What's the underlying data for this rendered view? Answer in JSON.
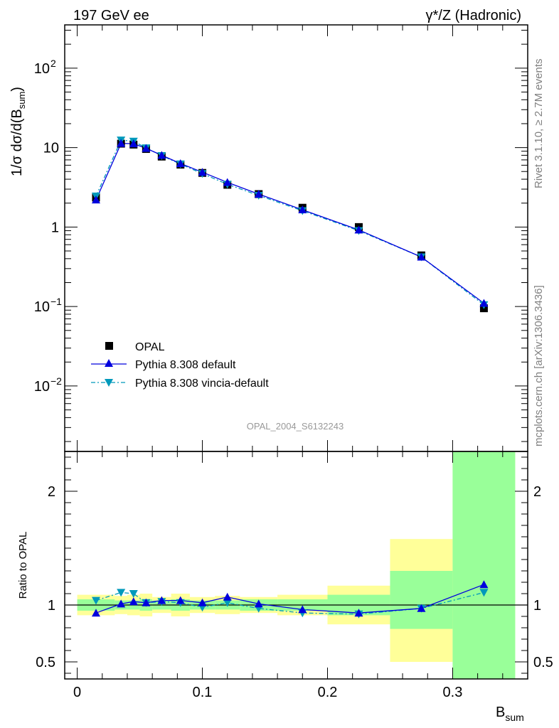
{
  "header": {
    "left": "197 GeV ee",
    "right_main": "γ*/Z (Hadronic)"
  },
  "side": {
    "rivet": "Rivet 3.1.10, ≥ 2.7M events",
    "mcplots": "mcplots.cern.ch [arXiv:1306.3436]"
  },
  "watermark": "OPAL_2004_S6132243",
  "axes": {
    "y_top_label": "1/σ dσ/d(B_sum)",
    "y_bottom_label": "Ratio to OPAL",
    "x_label": "B",
    "x_label_sub": "sum",
    "x_ticks": [
      "0",
      "0.1",
      "0.2",
      "0.3"
    ],
    "x_tick_values": [
      0,
      0.1,
      0.2,
      0.3
    ],
    "y_top_ticks": [
      {
        "value": 0.01,
        "base": "10",
        "exp": "−2"
      },
      {
        "value": 0.1,
        "base": "10",
        "exp": "−1"
      },
      {
        "value": 1,
        "base": "1",
        "exp": ""
      },
      {
        "value": 10,
        "base": "10",
        "exp": ""
      },
      {
        "value": 100,
        "base": "10",
        "exp": "2"
      }
    ],
    "y_bottom_ticks": [
      "0.5",
      "1",
      "2"
    ],
    "y_bottom_tick_values": [
      0.5,
      1,
      2
    ]
  },
  "legend": {
    "entries": [
      "OPAL",
      "Pythia 8.308 default",
      "Pythia 8.308 vincia-default"
    ]
  },
  "colors": {
    "data": "#000000",
    "default": "#0000dd",
    "vincia": "#0099bb",
    "band_inner": "#99ff99",
    "band_outer": "#ffff99"
  },
  "chart_data": [
    {
      "type": "scatter",
      "title": "197 GeV ee",
      "xlabel": "B_sum",
      "ylabel": "1/σ dσ/d(B_sum)",
      "yscale": "log",
      "xlim": [
        -0.01,
        0.36
      ],
      "ylim": [
        0.0015,
        350
      ],
      "bins": [
        [
          0.0,
          0.03
        ],
        [
          0.03,
          0.04
        ],
        [
          0.04,
          0.05
        ],
        [
          0.05,
          0.06
        ],
        [
          0.06,
          0.075
        ],
        [
          0.075,
          0.09
        ],
        [
          0.09,
          0.11
        ],
        [
          0.11,
          0.13
        ],
        [
          0.13,
          0.16
        ],
        [
          0.16,
          0.2
        ],
        [
          0.2,
          0.25
        ],
        [
          0.25,
          0.3
        ],
        [
          0.3,
          0.35
        ]
      ],
      "x": [
        0.015,
        0.035,
        0.045,
        0.055,
        0.0675,
        0.0825,
        0.1,
        0.12,
        0.145,
        0.18,
        0.225,
        0.275,
        0.325
      ],
      "series": [
        {
          "name": "OPAL",
          "values": [
            2.35,
            11.2,
            10.9,
            9.6,
            7.7,
            6.1,
            4.8,
            3.4,
            2.6,
            1.75,
            1.0,
            0.44,
            0.095
          ]
        },
        {
          "name": "Pythia 8.308 default",
          "values": [
            2.2,
            11.3,
            11.2,
            9.8,
            8.0,
            6.3,
            4.9,
            3.65,
            2.6,
            1.65,
            0.92,
            0.42,
            0.11
          ]
        },
        {
          "name": "Pythia 8.308 vincia-default",
          "values": [
            2.45,
            12.4,
            12.0,
            9.9,
            7.9,
            6.2,
            4.7,
            3.45,
            2.5,
            1.6,
            0.9,
            0.42,
            0.105
          ]
        }
      ]
    },
    {
      "type": "line",
      "ylabel": "Ratio to OPAL",
      "xlabel": "B_sum",
      "ylim": [
        0.35,
        2.35
      ],
      "band_inner": [
        [
          0.95,
          1.05
        ],
        [
          0.96,
          1.04
        ],
        [
          0.96,
          1.04
        ],
        [
          0.95,
          1.05
        ],
        [
          0.96,
          1.04
        ],
        [
          0.95,
          1.05
        ],
        [
          0.96,
          1.04
        ],
        [
          0.96,
          1.04
        ],
        [
          0.95,
          1.05
        ],
        [
          0.95,
          1.05
        ],
        [
          0.91,
          1.09
        ],
        [
          0.79,
          1.3
        ],
        [
          0.35,
          2.35
        ]
      ],
      "band_outer": [
        [
          0.91,
          1.09
        ],
        [
          0.92,
          1.08
        ],
        [
          0.91,
          1.09
        ],
        [
          0.9,
          1.1
        ],
        [
          0.93,
          1.07
        ],
        [
          0.9,
          1.1
        ],
        [
          0.93,
          1.07
        ],
        [
          0.92,
          1.08
        ],
        [
          0.93,
          1.07
        ],
        [
          0.91,
          1.09
        ],
        [
          0.83,
          1.17
        ],
        [
          0.5,
          1.58
        ],
        [
          0.35,
          2.35
        ]
      ],
      "series": [
        {
          "name": "Pythia 8.308 default",
          "values": [
            0.93,
            1.01,
            1.03,
            1.02,
            1.04,
            1.04,
            1.02,
            1.07,
            1.01,
            0.96,
            0.93,
            0.97,
            1.18
          ]
        },
        {
          "name": "Pythia 8.308 vincia-default",
          "values": [
            1.04,
            1.11,
            1.1,
            1.02,
            1.03,
            1.02,
            0.98,
            1.02,
            0.97,
            0.93,
            0.92,
            0.97,
            1.11
          ]
        }
      ]
    }
  ]
}
